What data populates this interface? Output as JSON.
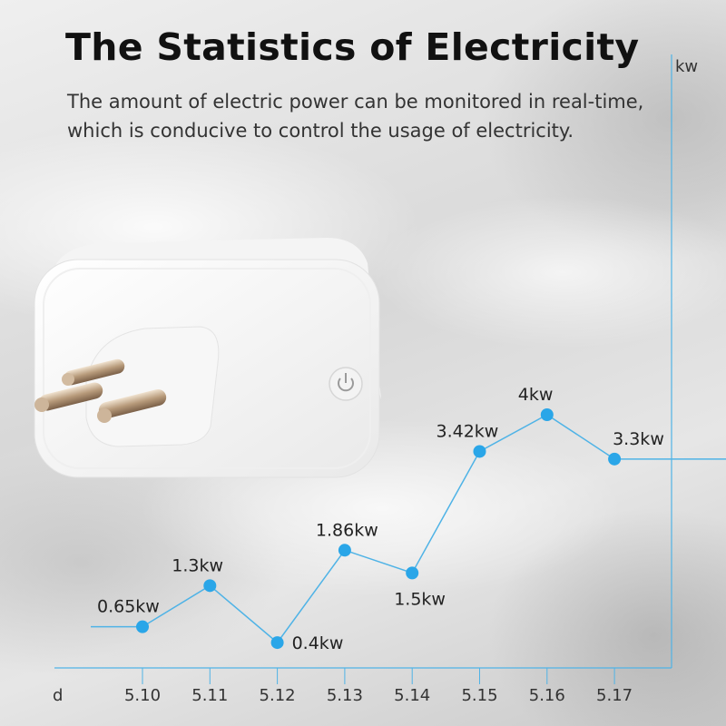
{
  "header": {
    "title": "The Statistics of Electricity",
    "subtitle_line1": "The amount of electric power can be monitored in real-time,",
    "subtitle_line2": "which is conducive to control the usage of electricity."
  },
  "colors": {
    "accent": "#2aa6e8",
    "line": "#4fb3e6"
  },
  "product": {
    "icon": "smart-plug-image",
    "button_icon": "power-icon"
  },
  "chart_data": {
    "type": "line",
    "title": "",
    "xlabel": "d",
    "ylabel": "kw",
    "x": [
      "5.10",
      "5.11",
      "5.12",
      "5.13",
      "5.14",
      "5.15",
      "5.16",
      "5.17"
    ],
    "values": [
      0.65,
      1.3,
      0.4,
      1.86,
      1.5,
      3.42,
      4,
      3.3
    ],
    "data_labels": [
      "0.65kw",
      "1.3kw",
      "0.4kw",
      "1.86kw",
      "1.5kw",
      "3.42kw",
      "4kw",
      "3.3kw"
    ],
    "ylim": [
      0,
      4
    ],
    "grid": "vertical"
  }
}
